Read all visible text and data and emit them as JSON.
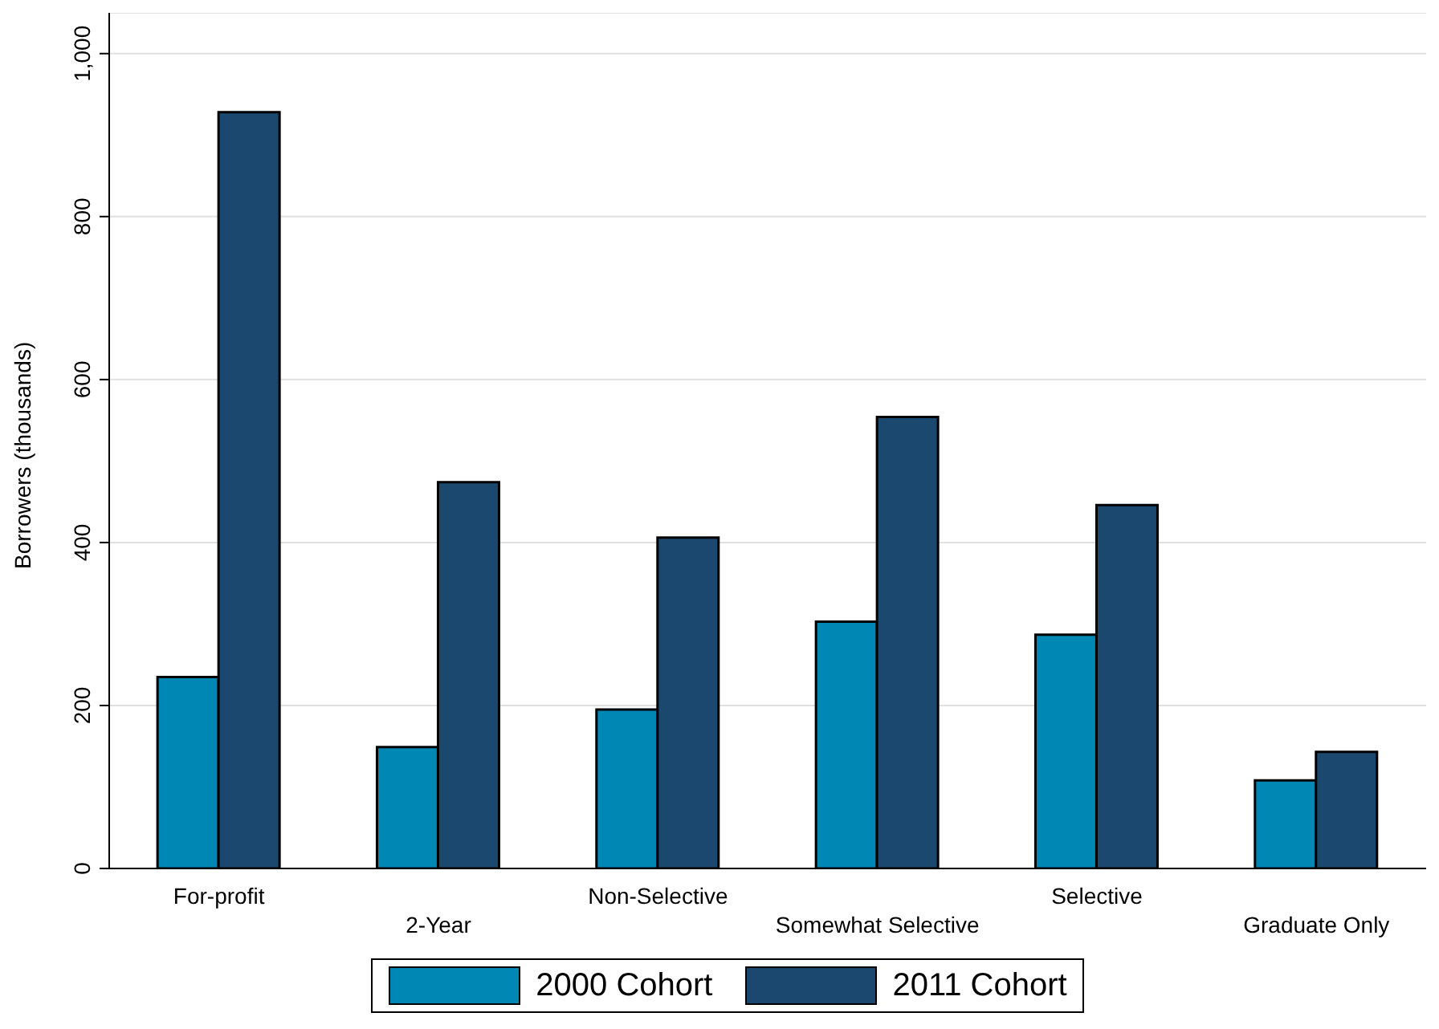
{
  "chart_data": {
    "type": "bar",
    "ylabel": "Borrowers (thousands)",
    "categories": [
      "For-profit",
      "2-Year",
      "Non-Selective",
      "Somewhat Selective",
      "Selective",
      "Graduate Only"
    ],
    "series": [
      {
        "name": "2000 Cohort",
        "color": "#0087b4",
        "values": [
          235,
          149,
          195,
          303,
          287,
          108
        ]
      },
      {
        "name": "2011 Cohort",
        "color": "#1a486e",
        "values": [
          928,
          474,
          406,
          554,
          446,
          143
        ]
      }
    ],
    "ylim": [
      0,
      1050
    ],
    "yticks": [
      0,
      200,
      400,
      600,
      800,
      {
        "value": 1000,
        "label": "1,000"
      }
    ],
    "grid": "y",
    "legend": "bottom"
  }
}
